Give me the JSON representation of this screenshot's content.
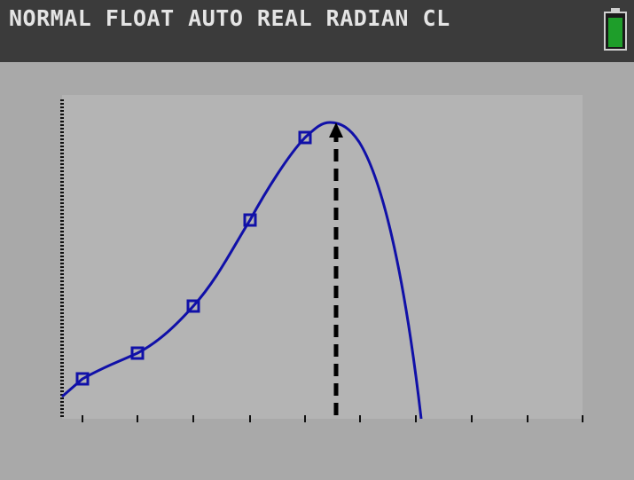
{
  "status_bar": {
    "mode": "NORMAL FLOAT AUTO REAL RADIAN CL"
  }
}
